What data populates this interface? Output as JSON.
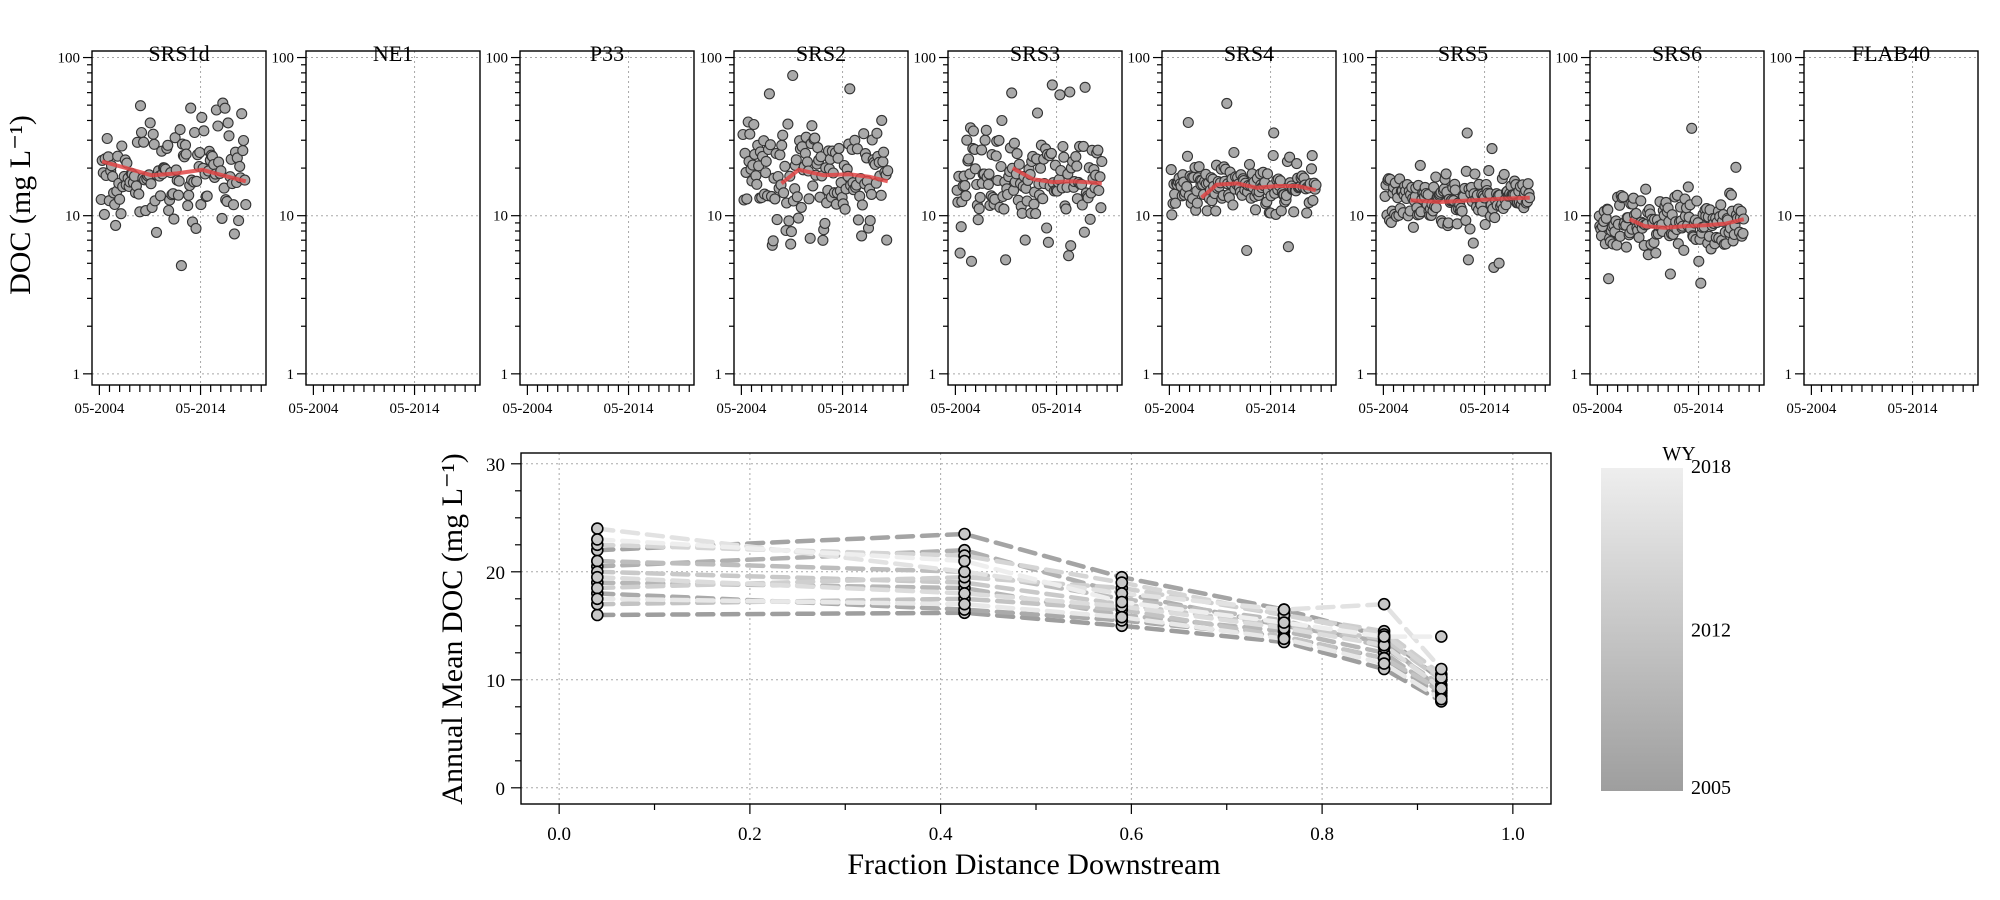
{
  "chart_data": [
    {
      "type": "scatter",
      "panels": [
        "SRS1d",
        "NE1",
        "P33",
        "SRS2",
        "SRS3",
        "SRS4",
        "SRS5",
        "SRS6",
        "FLAB40"
      ],
      "ylabel": "DOC (mg L⁻¹)",
      "ylim": [
        0.85,
        110
      ],
      "yscale": "log",
      "yticks": [
        1,
        10,
        100
      ],
      "ytick_labels": [
        "1",
        "10",
        "100"
      ],
      "xlim": [
        2003.6,
        2020.8
      ],
      "xticks": [
        2004.33,
        2014.33
      ],
      "xtick_labels": [
        "05-2004",
        "05-2014"
      ],
      "grid": true,
      "trend_color": "#e04545",
      "series": [
        {
          "site": "SRS1d",
          "start": 2004.5,
          "end": 2018.8,
          "n": 140,
          "level": 19,
          "spread": 0.17,
          "trend": [
            [
              2004.6,
              22
            ],
            [
              2007.0,
              20
            ],
            [
              2009.5,
              18
            ],
            [
              2012.0,
              18.5
            ],
            [
              2014.5,
              19.5
            ],
            [
              2016.5,
              18
            ],
            [
              2018.8,
              16.5
            ]
          ]
        },
        {
          "site": "NE1",
          "start": 0,
          "end": 0,
          "n": 0,
          "level": 0,
          "spread": 0,
          "trend": []
        },
        {
          "site": "P33",
          "start": 0,
          "end": 0,
          "n": 0,
          "level": 0,
          "spread": 0,
          "trend": []
        },
        {
          "site": "SRS2",
          "start": 2004.5,
          "end": 2018.8,
          "n": 150,
          "level": 18,
          "spread": 0.17,
          "trend": [
            [
              2008.3,
              16
            ],
            [
              2010.0,
              19.5
            ],
            [
              2012.5,
              18
            ],
            [
              2015.0,
              18.3
            ],
            [
              2017.0,
              17.6
            ],
            [
              2018.8,
              16.5
            ]
          ]
        },
        {
          "site": "SRS3",
          "start": 2004.5,
          "end": 2018.8,
          "n": 150,
          "level": 17,
          "spread": 0.14,
          "trend": [
            [
              2010.0,
              20
            ],
            [
              2012.0,
              17
            ],
            [
              2014.0,
              16.3
            ],
            [
              2016.0,
              16.5
            ],
            [
              2018.8,
              16.0
            ]
          ]
        },
        {
          "site": "SRS4",
          "start": 2004.5,
          "end": 2018.8,
          "n": 160,
          "level": 15,
          "spread": 0.08,
          "trend": [
            [
              2007.5,
              13
            ],
            [
              2009.0,
              15.7
            ],
            [
              2011.0,
              16
            ],
            [
              2013.0,
              15
            ],
            [
              2015.0,
              15.4
            ],
            [
              2017.0,
              15.4
            ],
            [
              2018.8,
              14.5
            ]
          ]
        },
        {
          "site": "SRS5",
          "start": 2004.5,
          "end": 2018.8,
          "n": 170,
          "level": 12.5,
          "spread": 0.08,
          "trend": [
            [
              2007.0,
              12.5
            ],
            [
              2010.0,
              12.2
            ],
            [
              2013.0,
              12.5
            ],
            [
              2016.0,
              12.8
            ],
            [
              2018.8,
              13
            ]
          ]
        },
        {
          "site": "SRS6",
          "start": 2004.5,
          "end": 2018.8,
          "n": 165,
          "level": 9,
          "spread": 0.1,
          "trend": [
            [
              2007.5,
              9.5
            ],
            [
              2009.0,
              8.6
            ],
            [
              2011.0,
              8.4
            ],
            [
              2013.0,
              8.6
            ],
            [
              2015.0,
              8.7
            ],
            [
              2017.0,
              8.9
            ],
            [
              2018.8,
              9.5
            ]
          ]
        },
        {
          "site": "FLAB40",
          "start": 0,
          "end": 0,
          "n": 0,
          "level": 0,
          "spread": 0,
          "trend": []
        }
      ]
    },
    {
      "type": "line",
      "xlabel": "Fraction Distance Downstream",
      "ylabel": "Annual Mean DOC (mg L⁻¹)",
      "xlim": [
        -0.04,
        1.04
      ],
      "ylim": [
        -1.5,
        31
      ],
      "xticks": [
        0.0,
        0.2,
        0.4,
        0.6,
        0.8,
        1.0
      ],
      "xtick_labels": [
        "0.0",
        "0.2",
        "0.4",
        "0.6",
        "0.8",
        "1.0"
      ],
      "yticks": [
        0,
        10,
        20,
        30
      ],
      "ytick_labels": [
        "0",
        "10",
        "20",
        "30"
      ],
      "grid": true,
      "x": [
        0.04,
        0.425,
        0.59,
        0.76,
        0.865,
        0.925
      ],
      "colorbar": {
        "title": "WY",
        "min": 2005,
        "max": 2018,
        "labels": [
          "2018",
          "2012",
          "2005"
        ],
        "color_min": "#9e9e9e",
        "color_max": "#eeeeee"
      },
      "series": [
        {
          "year": 2005,
          "values": [
            16.0,
            16.2,
            15.0,
            13.5,
            11.0,
            8.0
          ]
        },
        {
          "year": 2006,
          "values": [
            22.0,
            23.5,
            19.5,
            16.5,
            14.0,
            10.0
          ]
        },
        {
          "year": 2007,
          "values": [
            18.0,
            16.5,
            15.5,
            14.0,
            12.0,
            8.5
          ]
        },
        {
          "year": 2008,
          "values": [
            20.5,
            22.0,
            18.0,
            15.0,
            13.5,
            9.0
          ]
        },
        {
          "year": 2009,
          "values": [
            19.0,
            18.5,
            16.0,
            14.5,
            12.5,
            8.8
          ]
        },
        {
          "year": 2010,
          "values": [
            21.0,
            20.0,
            17.5,
            15.5,
            13.0,
            9.5
          ]
        },
        {
          "year": 2011,
          "values": [
            17.0,
            17.5,
            16.5,
            14.0,
            12.0,
            9.0
          ]
        },
        {
          "year": 2012,
          "values": [
            20.0,
            19.0,
            17.0,
            15.0,
            13.8,
            10.0
          ]
        },
        {
          "year": 2013,
          "values": [
            18.5,
            19.5,
            18.5,
            16.0,
            14.5,
            10.5
          ]
        },
        {
          "year": 2014,
          "values": [
            22.5,
            21.5,
            19.0,
            16.0,
            14.2,
            10.2
          ]
        },
        {
          "year": 2015,
          "values": [
            19.5,
            18.0,
            16.8,
            14.8,
            13.2,
            9.2
          ]
        },
        {
          "year": 2016,
          "values": [
            24.0,
            20.0,
            18.0,
            16.5,
            17.0,
            11.0
          ]
        },
        {
          "year": 2017,
          "values": [
            17.5,
            17.0,
            15.8,
            13.8,
            11.5,
            8.2
          ]
        },
        {
          "year": 2018,
          "values": [
            23.0,
            21.0,
            17.2,
            15.3,
            14.0,
            14.0
          ]
        }
      ]
    }
  ]
}
